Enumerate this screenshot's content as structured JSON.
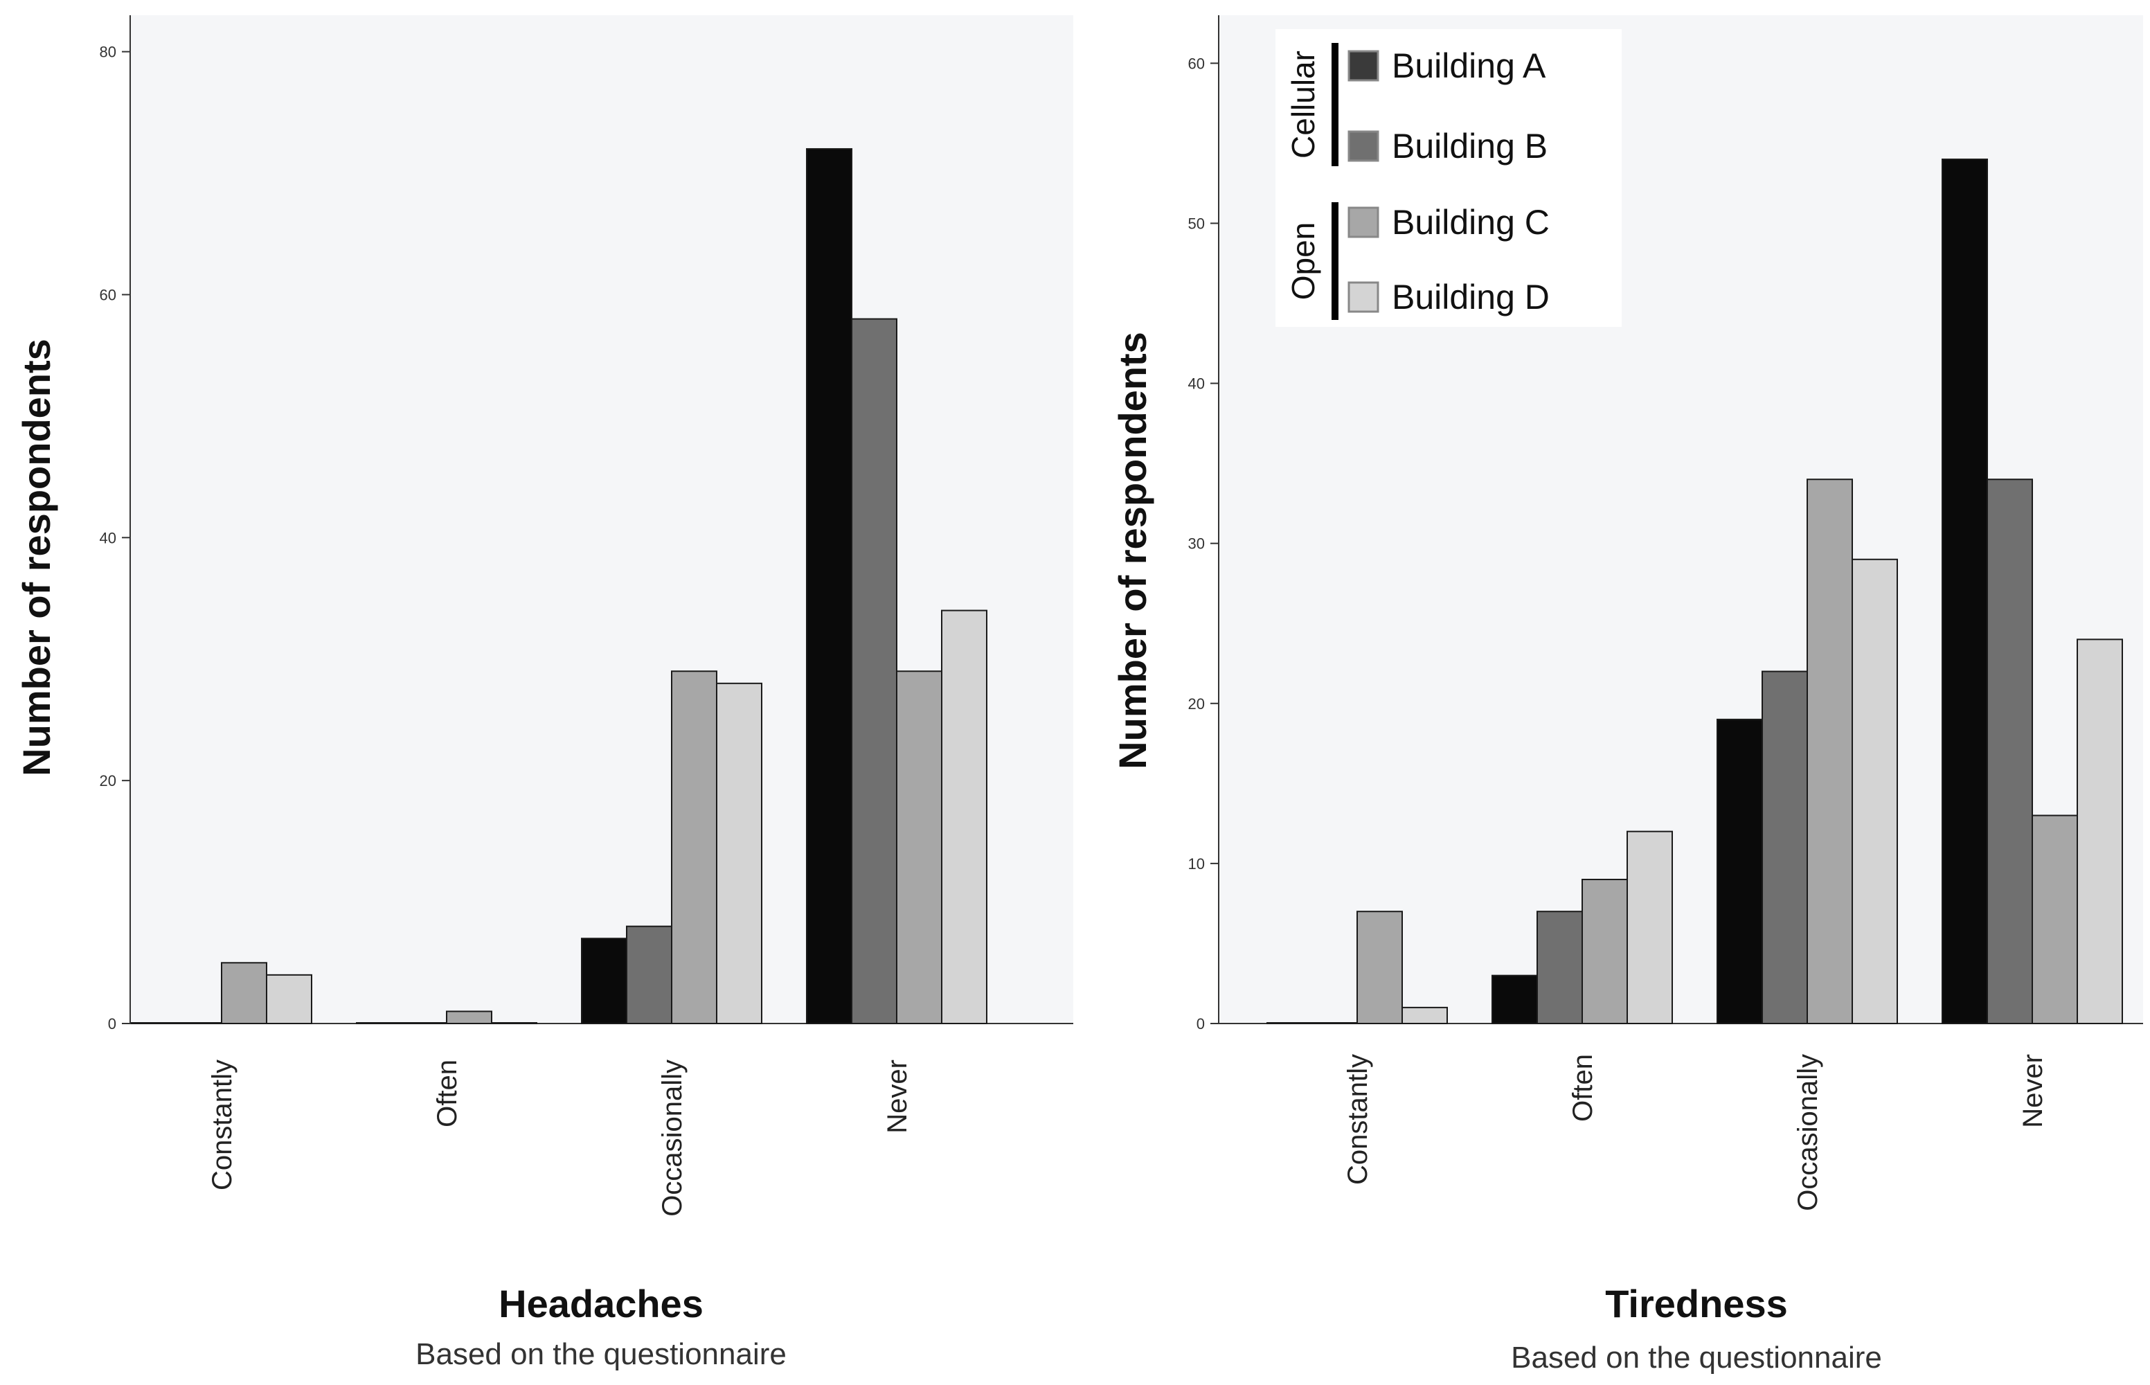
{
  "chart_data": [
    {
      "type": "bar",
      "title": "Headaches",
      "subtitle": "Based on the questionnaire",
      "ylabel": "Number of respondents",
      "categories": [
        "Constantly",
        "Often",
        "Occasionally",
        "Never"
      ],
      "ylim": [
        0,
        83
      ],
      "yticks": [
        0,
        20,
        40,
        60,
        80
      ],
      "series": [
        {
          "name": "Building A",
          "color": "#0a0a0a",
          "values": [
            0,
            0,
            7,
            72
          ]
        },
        {
          "name": "Building B",
          "color": "#707070",
          "values": [
            0,
            0,
            8,
            58
          ]
        },
        {
          "name": "Building C",
          "color": "#a7a7a7",
          "values": [
            5,
            1,
            29,
            29
          ]
        },
        {
          "name": "Building D",
          "color": "#d4d4d4",
          "values": [
            4,
            0,
            28,
            34
          ]
        }
      ]
    },
    {
      "type": "bar",
      "title": "Tiredness",
      "subtitle": "Based on the questionnaire",
      "ylabel": "Number of respondents",
      "categories": [
        "Constantly",
        "Often",
        "Occasionally",
        "Never"
      ],
      "ylim": [
        0,
        63
      ],
      "yticks": [
        0,
        10,
        20,
        30,
        40,
        50,
        60
      ],
      "series": [
        {
          "name": "Building A",
          "color": "#0a0a0a",
          "values": [
            0,
            3,
            19,
            54
          ]
        },
        {
          "name": "Building B",
          "color": "#707070",
          "values": [
            0,
            7,
            22,
            34
          ]
        },
        {
          "name": "Building C",
          "color": "#a7a7a7",
          "values": [
            7,
            9,
            34,
            13
          ]
        },
        {
          "name": "Building D",
          "color": "#d4d4d4",
          "values": [
            1,
            12,
            29,
            24
          ]
        }
      ]
    }
  ],
  "legend": {
    "groups": [
      {
        "label": "Cellular",
        "items": [
          "Building A",
          "Building B"
        ]
      },
      {
        "label": "Open",
        "items": [
          "Building C",
          "Building D"
        ]
      }
    ],
    "colors": {
      "Building A": "#3a3a3a",
      "Building B": "#707070",
      "Building C": "#a7a7a7",
      "Building D": "#d4d4d4"
    }
  },
  "style": {
    "plot_background": "#f5f6f8",
    "bar_outline": "#1a1a1a"
  }
}
